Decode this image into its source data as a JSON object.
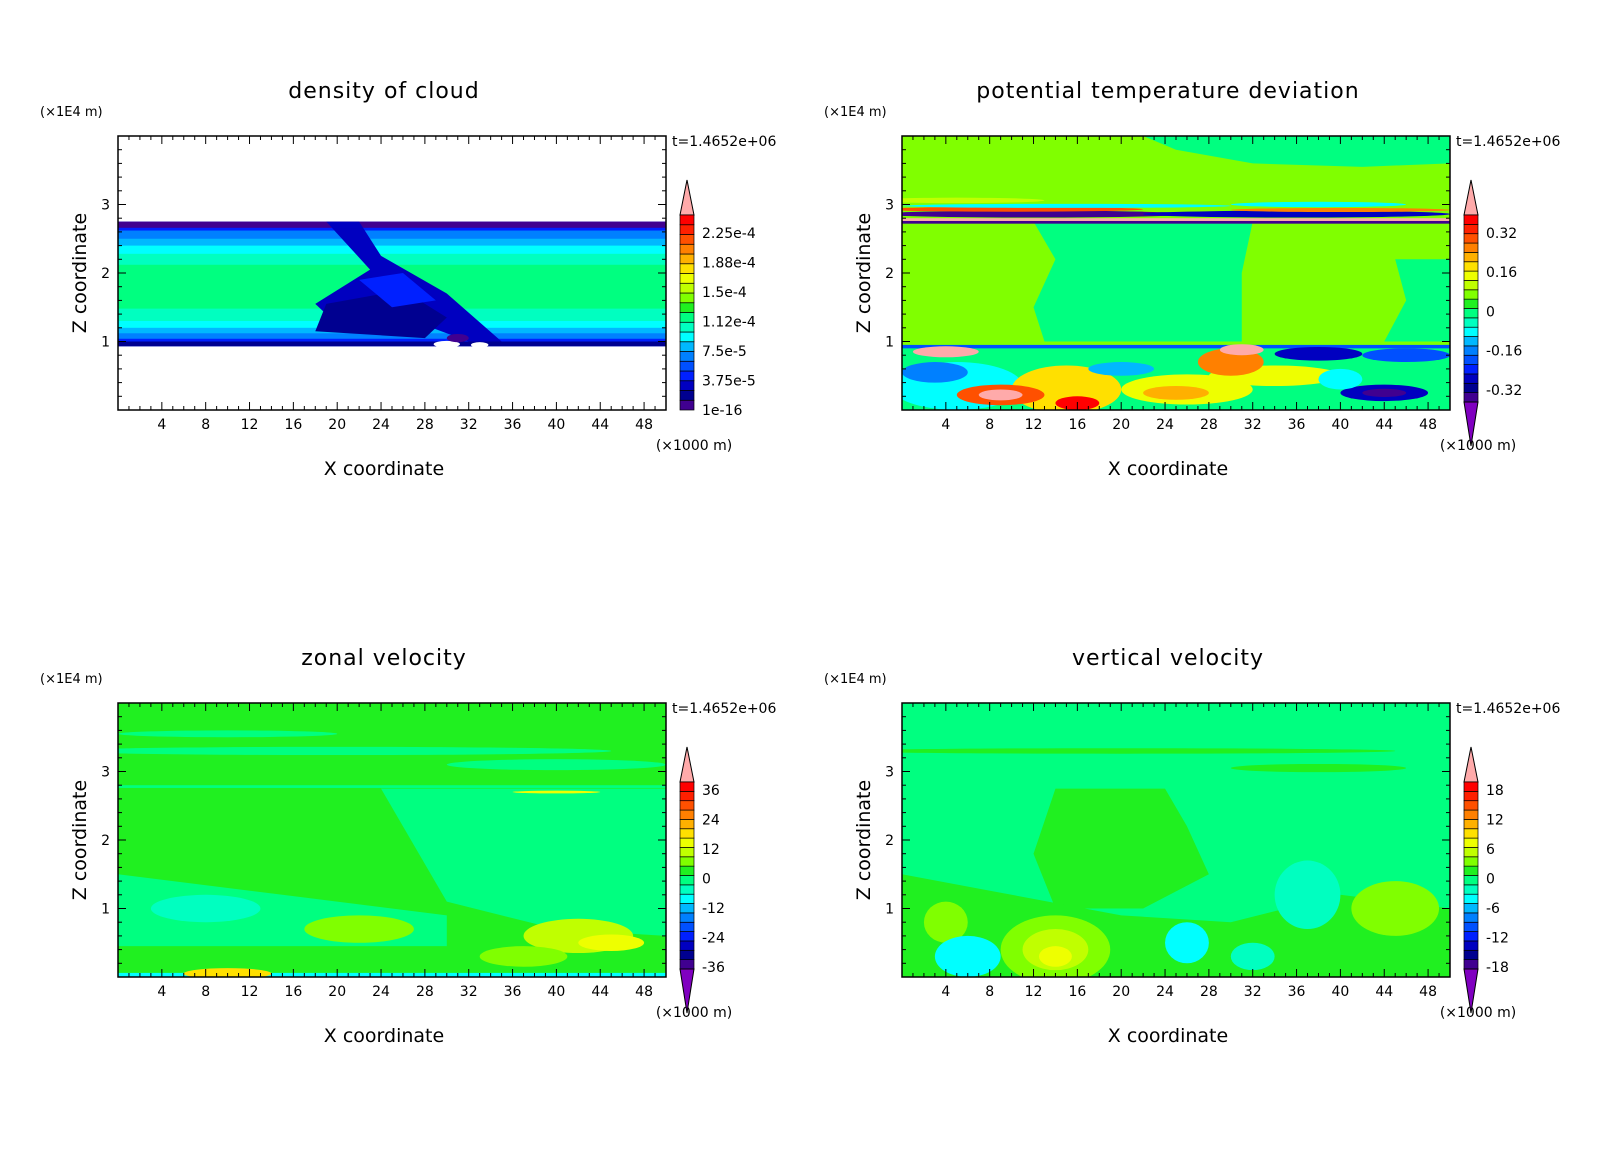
{
  "palette": [
    "#400090",
    "#000090",
    "#0000c0",
    "#0020ff",
    "#0050ff",
    "#0080ff",
    "#00b8ff",
    "#00ffff",
    "#00ffc0",
    "#00ff80",
    "#20f020",
    "#80ff00",
    "#c0ff00",
    "#eeff00",
    "#ffe000",
    "#ffb000",
    "#ff8000",
    "#ff5000",
    "#ff2000",
    "#ff0000"
  ],
  "over_color": "#ffaaaa",
  "under_color": "#8000c0",
  "chart_data": [
    {
      "type": "heatmap",
      "title": "density of cloud",
      "xlabel": "X coordinate",
      "ylabel": "Z coordinate",
      "x_unit": "(×1000 m)",
      "y_unit": "(×1E4 m)",
      "time_label": "t=1.4652e+06",
      "xlim": [
        0,
        50
      ],
      "ylim": [
        0,
        4
      ],
      "x_ticks": [
        "4",
        "8",
        "12",
        "16",
        "20",
        "24",
        "28",
        "32",
        "36",
        "40",
        "44",
        "48"
      ],
      "y_ticks": [
        "1",
        "2",
        "3"
      ],
      "colorbar_labels": [
        "2.25e-4",
        "1.88e-4",
        "1.5e-4",
        "1.12e-4",
        "7.5e-5",
        "3.75e-5",
        "1e-16"
      ],
      "colorbar_extend": "max"
    },
    {
      "type": "heatmap",
      "title": "potential temperature deviation",
      "xlabel": "X coordinate",
      "ylabel": "Z coordinate",
      "x_unit": "(×1000 m)",
      "y_unit": "(×1E4 m)",
      "time_label": "t=1.4652e+06",
      "xlim": [
        0,
        50
      ],
      "ylim": [
        0,
        4
      ],
      "x_ticks": [
        "4",
        "8",
        "12",
        "16",
        "20",
        "24",
        "28",
        "32",
        "36",
        "40",
        "44",
        "48"
      ],
      "y_ticks": [
        "1",
        "2",
        "3"
      ],
      "colorbar_labels": [
        "0.32",
        "0.16",
        "0",
        "-0.16",
        "-0.32"
      ],
      "colorbar_extend": "both"
    },
    {
      "type": "heatmap",
      "title": "zonal velocity",
      "xlabel": "X coordinate",
      "ylabel": "Z coordinate",
      "x_unit": "(×1000 m)",
      "y_unit": "(×1E4 m)",
      "time_label": "t=1.4652e+06",
      "xlim": [
        0,
        50
      ],
      "ylim": [
        0,
        4
      ],
      "x_ticks": [
        "4",
        "8",
        "12",
        "16",
        "20",
        "24",
        "28",
        "32",
        "36",
        "40",
        "44",
        "48"
      ],
      "y_ticks": [
        "1",
        "2",
        "3"
      ],
      "colorbar_labels": [
        "36",
        "24",
        "12",
        "0",
        "-12",
        "-24",
        "-36"
      ],
      "colorbar_extend": "both"
    },
    {
      "type": "heatmap",
      "title": "vertical velocity",
      "xlabel": "X coordinate",
      "ylabel": "Z coordinate",
      "x_unit": "(×1000 m)",
      "y_unit": "(×1E4 m)",
      "time_label": "t=1.4652e+06",
      "xlim": [
        0,
        50
      ],
      "ylim": [
        0,
        4
      ],
      "x_ticks": [
        "4",
        "8",
        "12",
        "16",
        "20",
        "24",
        "28",
        "32",
        "36",
        "40",
        "44",
        "48"
      ],
      "y_ticks": [
        "1",
        "2",
        "3"
      ],
      "colorbar_labels": [
        "18",
        "12",
        "6",
        "0",
        "-6",
        "-12",
        "-18"
      ],
      "colorbar_extend": "both"
    }
  ]
}
